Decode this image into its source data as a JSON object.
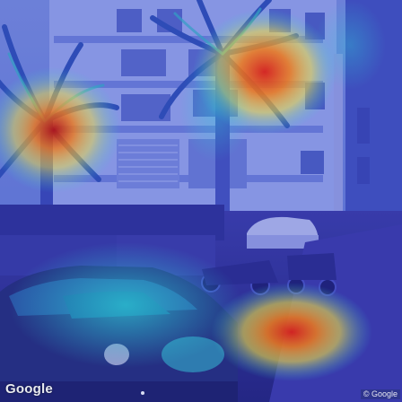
{
  "scene": {
    "description_label": "street-view-heatmap",
    "logo_text": "Google",
    "copyright_text": "© Google"
  },
  "palette": {
    "sky": "#8fa6e8",
    "building": "#5a78d8",
    "facade_light": "#a7b8f0",
    "overlay_blue": "#2a2fb8",
    "heat_red": "#d8221c",
    "heat_orange": "#f07a1a",
    "heat_yellow": "#f2e040",
    "heat_cyan": "#2ed0d8",
    "ground": "#2b2f88"
  }
}
